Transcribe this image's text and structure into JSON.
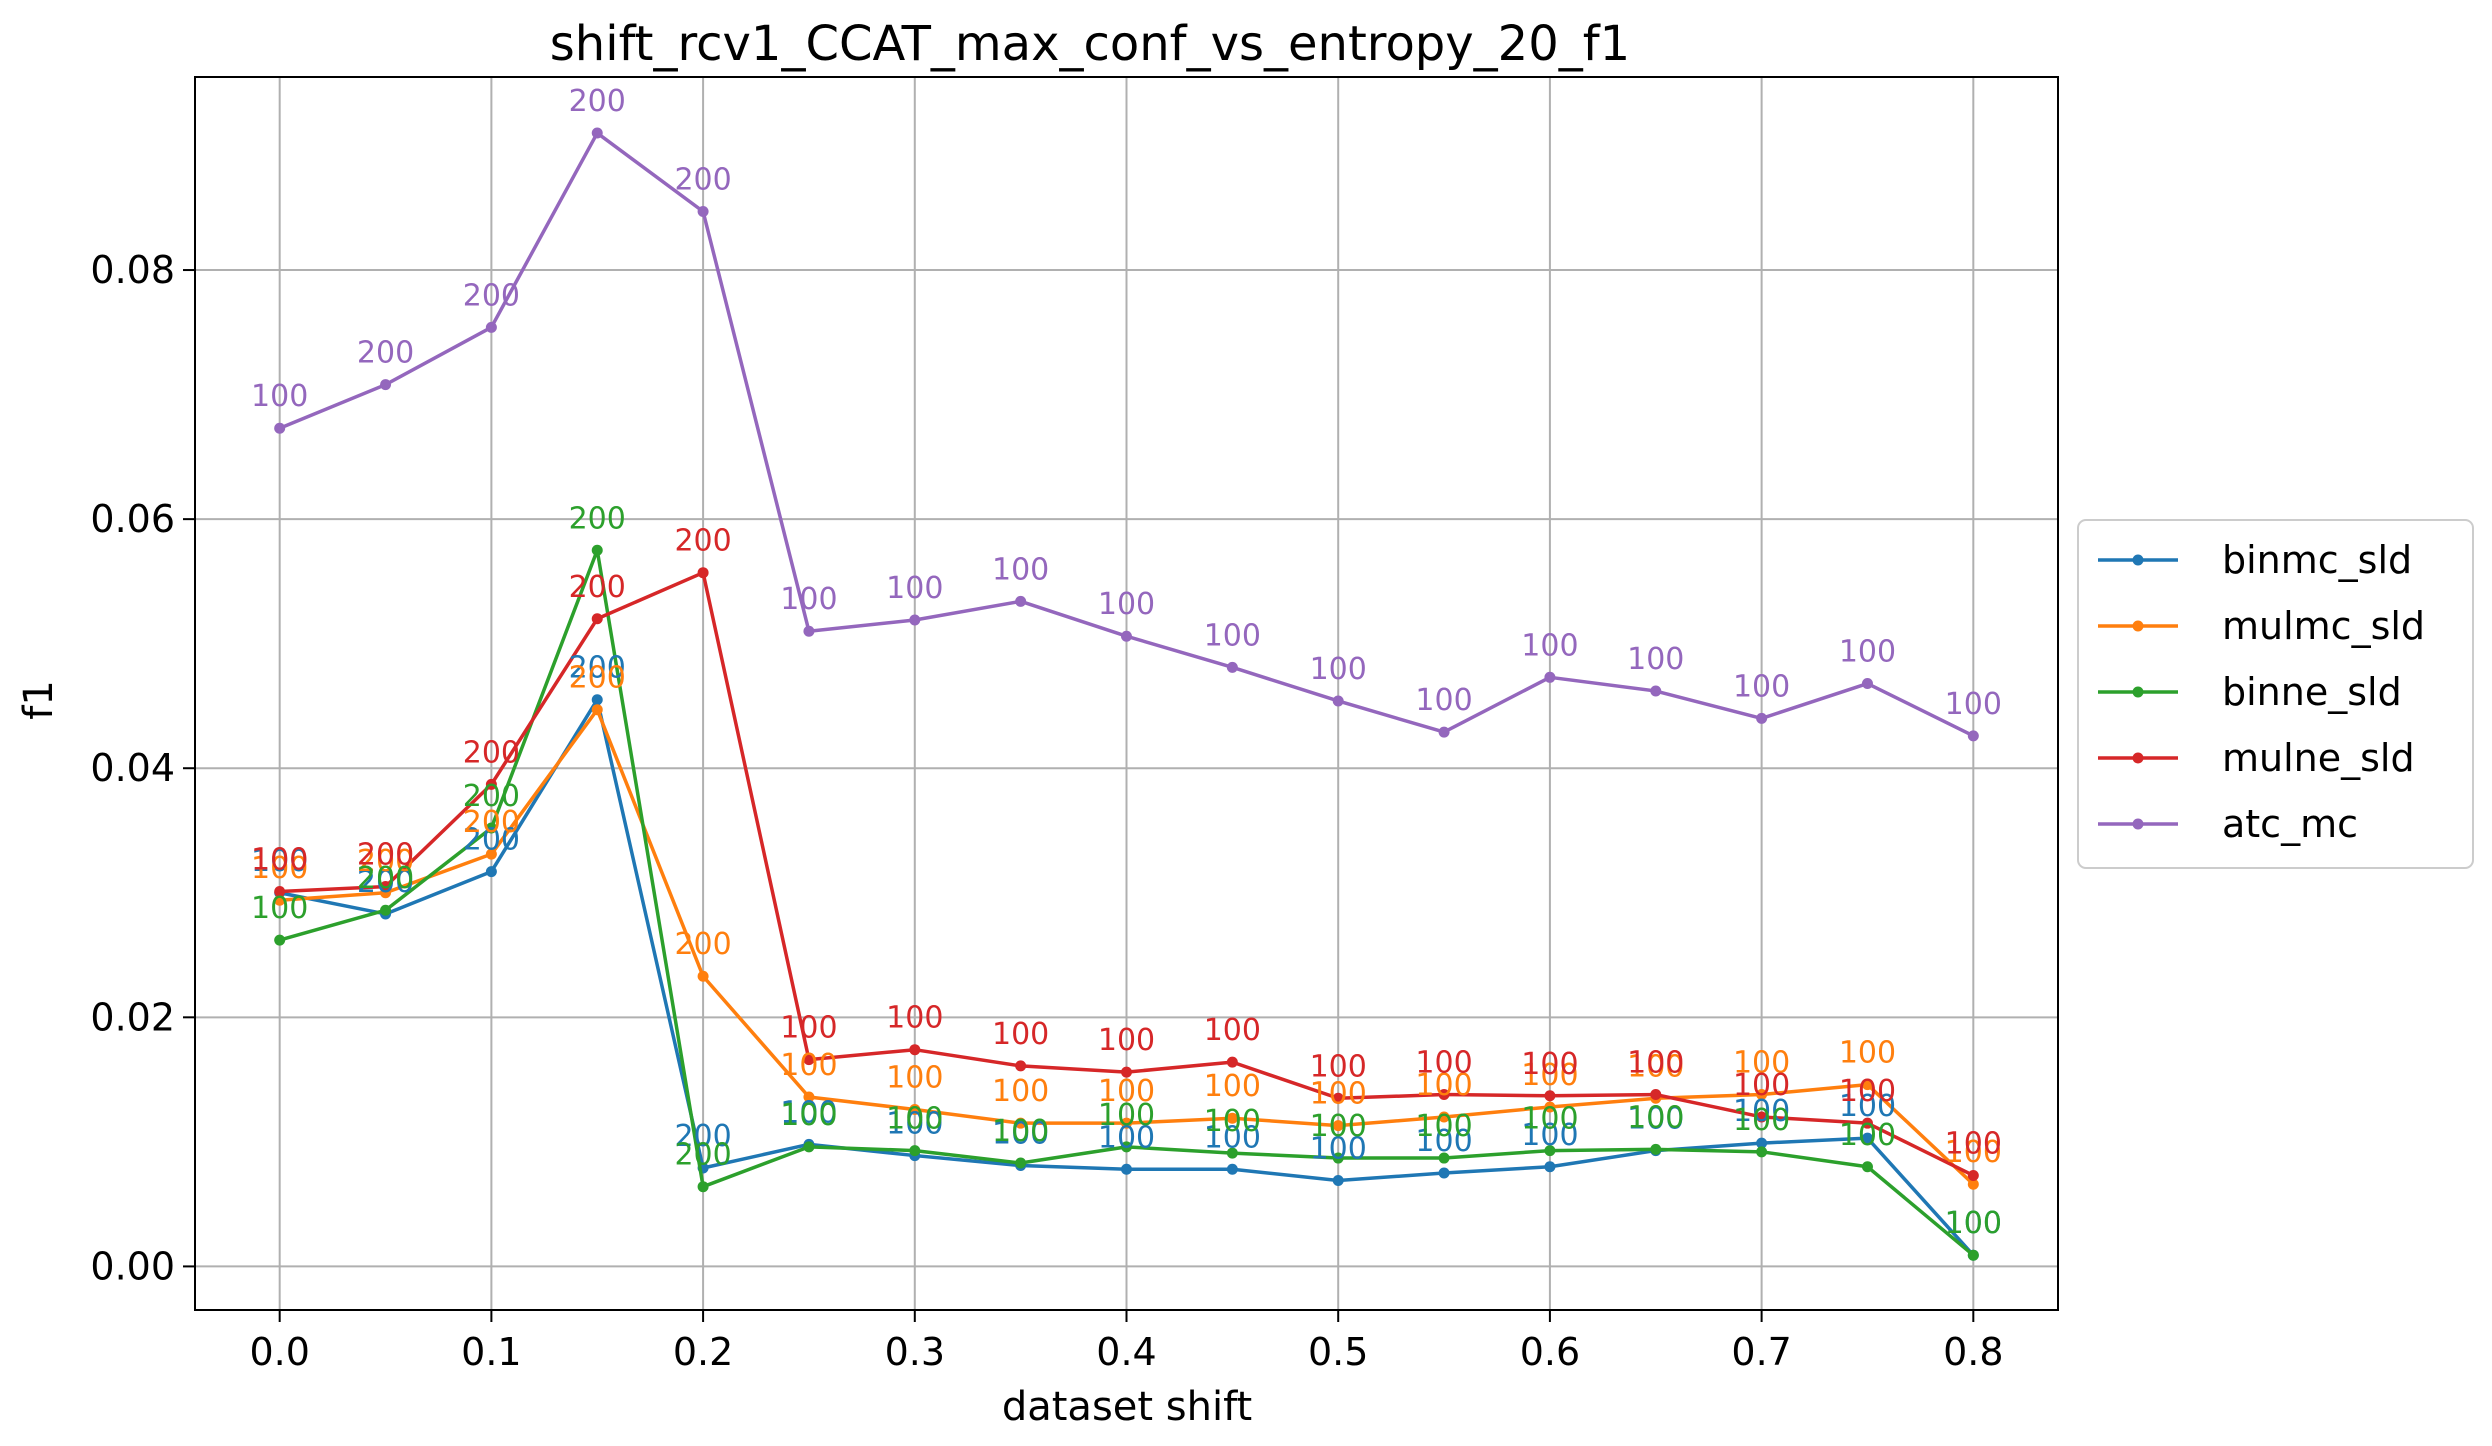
{
  "chart_data": {
    "type": "line",
    "title": "shift_rcv1_CCAT_max_conf_vs_entropy_20_f1",
    "xlabel": "dataset shift",
    "ylabel": "f1",
    "xlim": [
      -0.04,
      0.84
    ],
    "ylim": [
      -0.0035,
      0.0955
    ],
    "xticks": [
      "0.0",
      "0.1",
      "0.2",
      "0.3",
      "0.4",
      "0.5",
      "0.6",
      "0.7",
      "0.8"
    ],
    "xtick_values": [
      0.0,
      0.1,
      0.2,
      0.3,
      0.4,
      0.5,
      0.6,
      0.7,
      0.8
    ],
    "yticks": [
      "0.00",
      "0.02",
      "0.04",
      "0.06",
      "0.08"
    ],
    "ytick_values": [
      0.0,
      0.02,
      0.04,
      0.06,
      0.08
    ],
    "grid": true,
    "legend_position": "right-outside",
    "x": [
      0.0,
      0.05,
      0.1,
      0.15,
      0.2,
      0.25,
      0.3,
      0.35,
      0.4,
      0.45,
      0.5,
      0.55,
      0.6,
      0.65,
      0.7,
      0.75,
      0.8
    ],
    "series": [
      {
        "name": "binmc_sld",
        "color": "#1f77b4",
        "values": [
          0.03,
          0.0283,
          0.0317,
          0.0455,
          0.0079,
          0.0098,
          0.0089,
          0.0081,
          0.0078,
          0.0078,
          0.0069,
          0.0075,
          0.008,
          0.0093,
          0.0099,
          0.0103,
          0.0009
        ],
        "labels": [
          "100",
          "200",
          "200",
          "200",
          "200",
          "100",
          "100",
          "100",
          "100",
          "100",
          "100",
          "100",
          "100",
          "100",
          "100",
          "100",
          "100"
        ]
      },
      {
        "name": "mulmc_sld",
        "color": "#ff7f0e",
        "values": [
          0.0294,
          0.03,
          0.0331,
          0.0447,
          0.0233,
          0.0136,
          0.0126,
          0.0115,
          0.0115,
          0.0119,
          0.0113,
          0.012,
          0.0128,
          0.0135,
          0.0138,
          0.0146,
          0.0066
        ],
        "labels": [
          "100",
          "200",
          "200",
          "200",
          "200",
          "100",
          "100",
          "100",
          "100",
          "100",
          "100",
          "100",
          "100",
          "100",
          "100",
          "100",
          "100"
        ]
      },
      {
        "name": "binne_sld",
        "color": "#2ca02c",
        "values": [
          0.0262,
          0.0286,
          0.0352,
          0.0575,
          0.0064,
          0.0096,
          0.0093,
          0.0083,
          0.0096,
          0.0091,
          0.0087,
          0.0087,
          0.0093,
          0.0094,
          0.0092,
          0.008,
          0.0009
        ],
        "labels": [
          "100",
          "200",
          "200",
          "200",
          "200",
          "100",
          "100",
          "100",
          "100",
          "100",
          "100",
          "100",
          "100",
          "100",
          "100",
          "100",
          "100"
        ]
      },
      {
        "name": "mulne_sld",
        "color": "#d62728",
        "values": [
          0.0301,
          0.0305,
          0.0387,
          0.052,
          0.0557,
          0.0166,
          0.0174,
          0.0161,
          0.0156,
          0.0164,
          0.0135,
          0.0138,
          0.0137,
          0.0138,
          0.012,
          0.0115,
          0.0073
        ],
        "labels": [
          "100",
          "200",
          "200",
          "200",
          "200",
          "100",
          "100",
          "100",
          "100",
          "100",
          "100",
          "100",
          "100",
          "100",
          "100",
          "100",
          "100"
        ]
      },
      {
        "name": "atc_mc",
        "color": "#9467bd",
        "values": [
          0.0673,
          0.0708,
          0.0754,
          0.091,
          0.0847,
          0.051,
          0.0519,
          0.0534,
          0.0506,
          0.0481,
          0.0454,
          0.0429,
          0.0473,
          0.0462,
          0.044,
          0.0468,
          0.0426
        ],
        "labels": [
          "100",
          "200",
          "200",
          "200",
          "200",
          "100",
          "100",
          "100",
          "100",
          "100",
          "100",
          "100",
          "100",
          "100",
          "100",
          "100",
          "100"
        ]
      }
    ]
  }
}
